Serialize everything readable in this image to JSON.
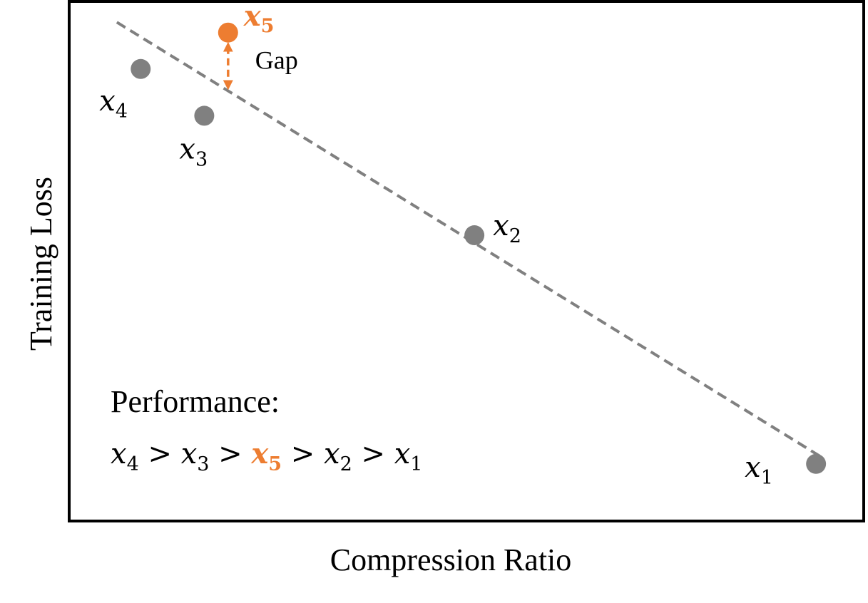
{
  "chart_data": {
    "type": "scatter",
    "title": "",
    "xlabel": "Compression Ratio",
    "ylabel": "Training Loss",
    "x_ticks": "none",
    "y_ticks": "none",
    "grid": false,
    "colors": {
      "default_point": "#808080",
      "highlight": "#ED7D31",
      "trend_line": "#808080",
      "frame": "#000000"
    },
    "points": [
      {
        "label": "x",
        "sub": "1",
        "x": 0.94,
        "y": 0.11,
        "highlight": false
      },
      {
        "label": "x",
        "sub": "2",
        "x": 0.51,
        "y": 0.55,
        "highlight": false
      },
      {
        "label": "x",
        "sub": "3",
        "x": 0.17,
        "y": 0.78,
        "highlight": false
      },
      {
        "label": "x",
        "sub": "4",
        "x": 0.09,
        "y": 0.87,
        "highlight": false
      },
      {
        "label": "x",
        "sub": "5",
        "x": 0.2,
        "y": 0.94,
        "highlight": true
      }
    ],
    "trend_line": {
      "style": "dashed",
      "x": [
        0.06,
        0.95
      ],
      "y": [
        0.96,
        0.12
      ]
    },
    "gap_annotation": {
      "text": "Gap",
      "from_point": "x5",
      "to": "trend line"
    },
    "performance_note": {
      "title": "Performance:",
      "order": [
        {
          "label": "x",
          "sub": "4",
          "highlight": false
        },
        {
          "label": "x",
          "sub": "3",
          "highlight": false
        },
        {
          "label": "x",
          "sub": "5",
          "highlight": true
        },
        {
          "label": "x",
          "sub": "2",
          "highlight": false
        },
        {
          "label": "x",
          "sub": "1",
          "highlight": false
        }
      ],
      "separator": ">"
    }
  }
}
